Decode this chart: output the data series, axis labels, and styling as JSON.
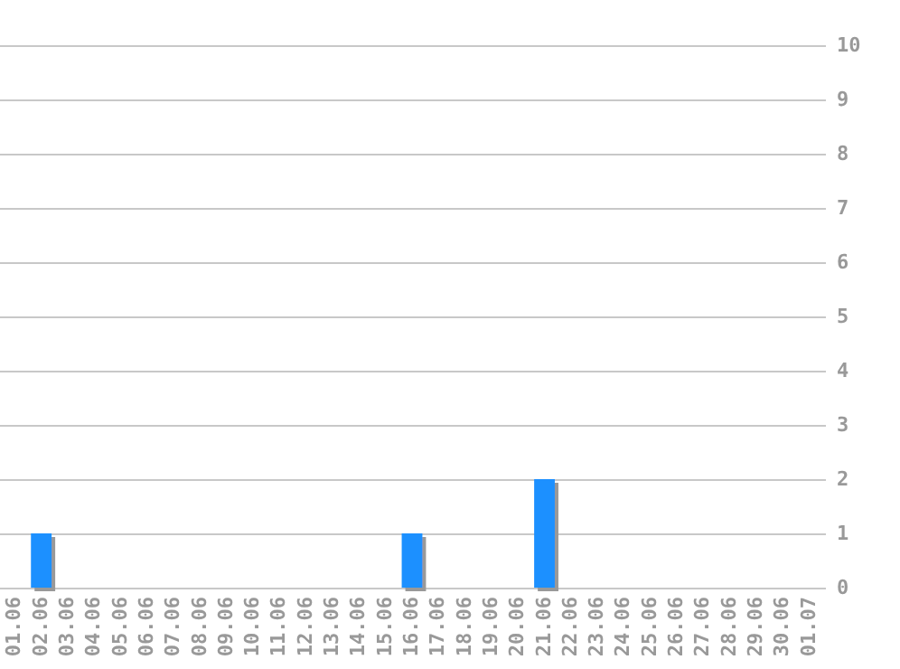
{
  "chart_data": {
    "type": "bar",
    "categories": [
      "01.06",
      "02.06",
      "03.06",
      "04.06",
      "05.06",
      "06.06",
      "07.06",
      "08.06",
      "09.06",
      "10.06",
      "11.06",
      "12.06",
      "13.06",
      "14.06",
      "15.06",
      "16.06",
      "17.06",
      "18.06",
      "19.06",
      "20.06",
      "21.06",
      "22.06",
      "23.06",
      "24.06",
      "25.06",
      "26.06",
      "27.06",
      "28.06",
      "29.06",
      "30.06",
      "01.07"
    ],
    "values": [
      0,
      1,
      0,
      0,
      0,
      0,
      0,
      0,
      0,
      0,
      0,
      0,
      0,
      0,
      0,
      1,
      0,
      0,
      0,
      0,
      2,
      0,
      0,
      0,
      0,
      0,
      0,
      0,
      0,
      0,
      0
    ],
    "color": "#1e90ff",
    "ylim": [
      0,
      10
    ],
    "yticks": [
      0,
      1,
      2,
      3,
      4,
      5,
      6,
      7,
      8,
      9,
      10
    ],
    "grid": "y"
  }
}
